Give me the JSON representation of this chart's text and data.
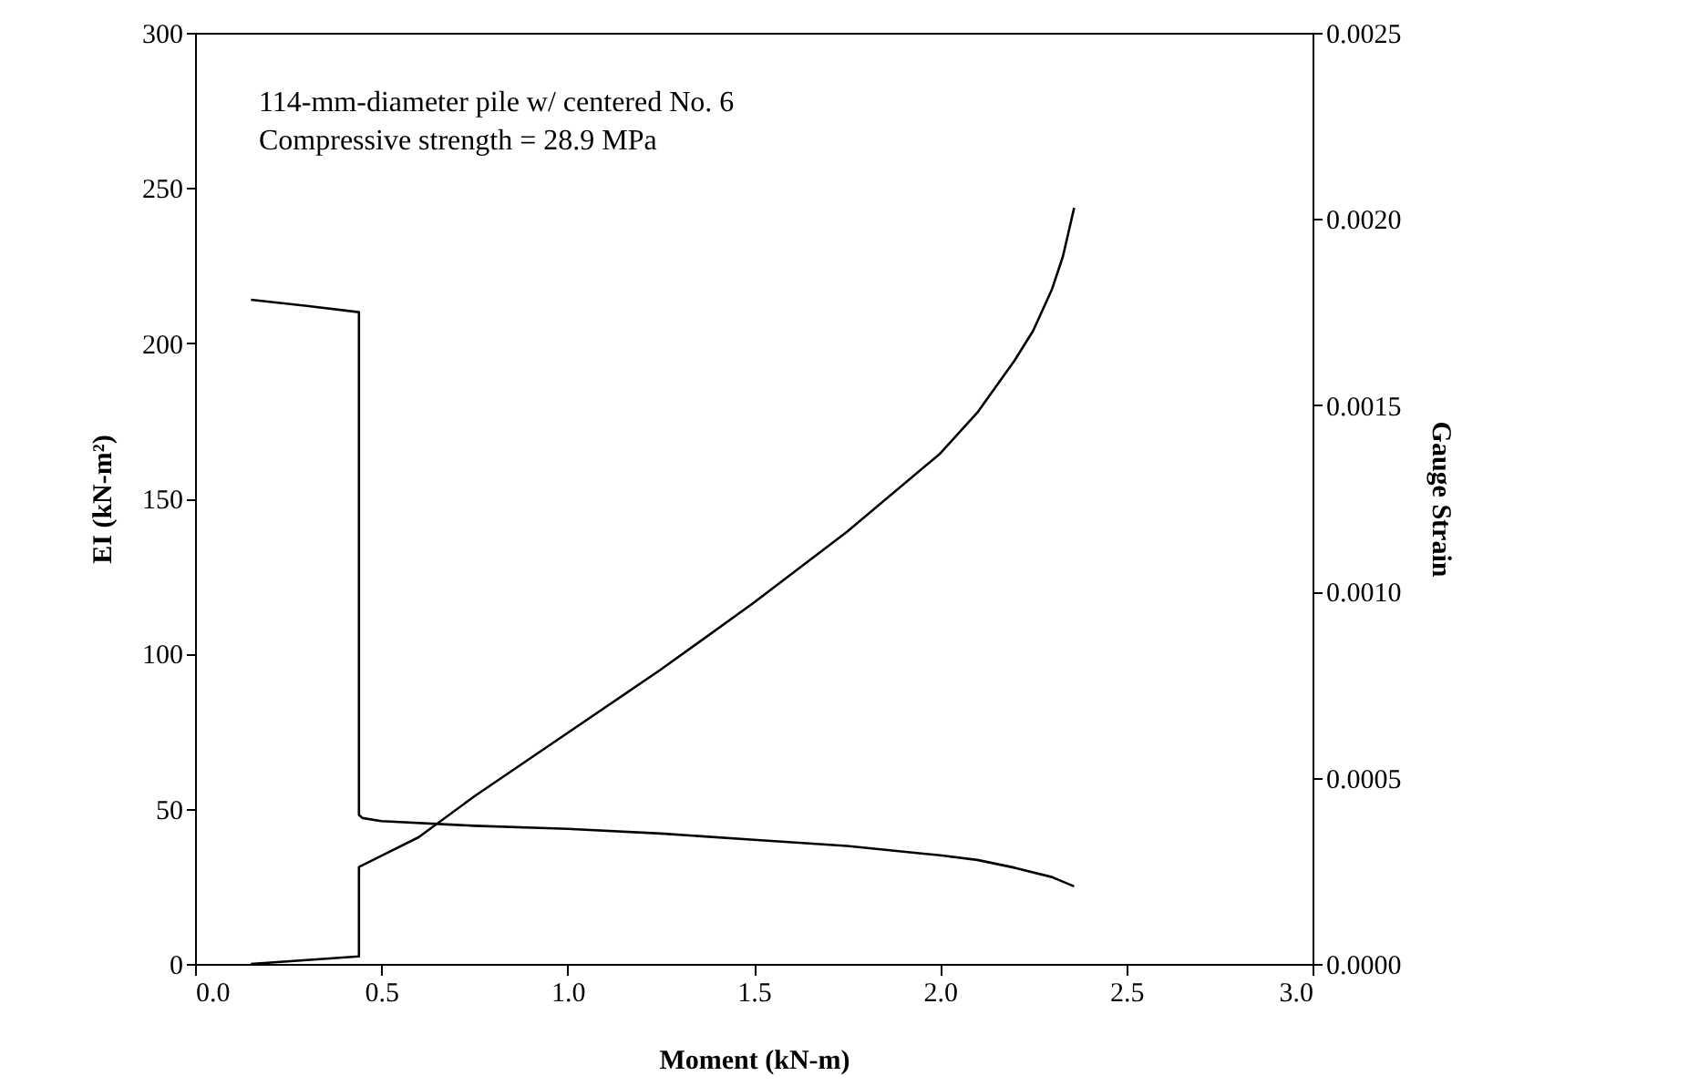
{
  "chart_data": {
    "type": "line",
    "xlabel": "Moment (kN-m)",
    "ylabel": "EI (kN-m²)",
    "y2label": "Gauge Strain",
    "annotations": [
      "114-mm-diameter pile w/ centered No. 6",
      "Compressive strength = 28.9 MPa"
    ],
    "xlim": [
      0,
      3
    ],
    "xticks": [
      {
        "value": 0,
        "label": "0.0"
      },
      {
        "value": 0.5,
        "label": "0.5"
      },
      {
        "value": 1,
        "label": "1.0"
      },
      {
        "value": 1.5,
        "label": "1.5"
      },
      {
        "value": 2,
        "label": "2.0"
      },
      {
        "value": 2.5,
        "label": "2.5"
      },
      {
        "value": 3,
        "label": "3.0"
      }
    ],
    "ylim": [
      0,
      300
    ],
    "yticks": [
      0,
      50,
      100,
      150,
      200,
      250,
      300
    ],
    "y2lim": [
      0,
      0.0025
    ],
    "y2ticks": [
      {
        "value": 0,
        "label": "0.0000"
      },
      {
        "value": 0.0005,
        "label": "0.0005"
      },
      {
        "value": 0.001,
        "label": "0.0010"
      },
      {
        "value": 0.0015,
        "label": "0.0015"
      },
      {
        "value": 0.002,
        "label": "0.0020"
      },
      {
        "value": 0.0025,
        "label": "0.0025"
      }
    ],
    "grid": false,
    "series": [
      {
        "color": "#000000",
        "x": [
          0.15,
          0.3,
          0.44,
          0.44,
          0.45,
          0.5,
          0.75,
          1.0,
          1.25,
          1.5,
          1.75,
          2.0,
          2.1,
          2.2,
          2.3,
          2.36
        ],
        "values": [
          214,
          212,
          210,
          48,
          47,
          46,
          44.5,
          43.5,
          42,
          40,
          38,
          35,
          33.5,
          31,
          28,
          25
        ]
      },
      {
        "color": "#000000",
        "axis": "y2",
        "x": [
          0.15,
          0.44,
          0.44,
          0.5,
          0.6,
          0.75,
          1.0,
          1.25,
          1.5,
          1.75,
          2.0,
          2.1,
          2.2,
          2.25,
          2.3,
          2.33,
          2.36
        ],
        "values": [
          0.0,
          2e-05,
          0.00026,
          0.00029,
          0.00034,
          0.00045,
          0.00062,
          0.00079,
          0.00097,
          0.00116,
          0.00137,
          0.00148,
          0.00162,
          0.0017,
          0.00181,
          0.0019,
          0.00203
        ]
      }
    ]
  }
}
